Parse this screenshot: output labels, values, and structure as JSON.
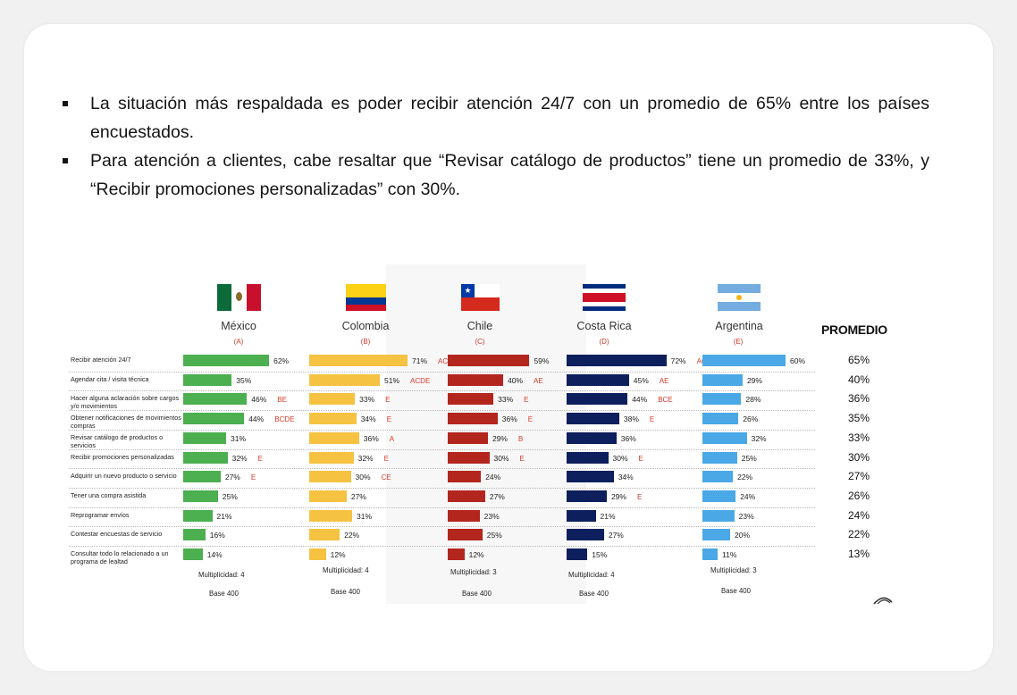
{
  "bullets": [
    "La situación más respaldada es poder recibir atención 24/7 con un promedio de 65% entre los países encuestados.",
    "Para atención a clientes, cabe resaltar que “Revisar catálogo de productos” tiene un promedio de 33%, y “Recibir promociones personalizadas” con 30%."
  ],
  "chart_data": {
    "type": "bar",
    "orientation": "horizontal",
    "promedio_title": "PROMEDIO",
    "categories": [
      "Recibir atención 24/7",
      "Agendar cita / visita técnica",
      "Hacer alguna aclaración sobre cargos y/o movimientos",
      "Obtener notificaciones de movimientos / compras",
      "Revisar catálogo de productos o servicios",
      "Recibir promociones personalizadas",
      "Adquirir un nuevo producto o servicio",
      "Tener una compra asistida",
      "Reprogramar envíos",
      "Contestar encuestas de servicio",
      "Consultar todo lo relacionado a un programa de lealtad"
    ],
    "series": [
      {
        "name": "México",
        "letter": "(A)",
        "color": "#4caf50",
        "values": [
          62,
          35,
          46,
          44,
          31,
          32,
          27,
          25,
          21,
          16,
          14
        ],
        "sig": [
          "",
          "",
          "BE",
          "BCDE",
          "",
          "E",
          "E",
          "",
          "",
          "",
          ""
        ],
        "multiplicity": "Multiplicidad: 4",
        "base": "Base 400"
      },
      {
        "name": "Colombia",
        "letter": "(B)",
        "color": "#f5c242",
        "values": [
          71,
          51,
          33,
          34,
          36,
          32,
          30,
          27,
          31,
          22,
          12
        ],
        "sig": [
          "ACE",
          "ACDE",
          "E",
          "E",
          "A",
          "E",
          "CE",
          "",
          "",
          "",
          ""
        ],
        "multiplicity": "Multiplicidad: 4",
        "base": "Base 400"
      },
      {
        "name": "Chile",
        "letter": "(C)",
        "color": "#b3261e",
        "values": [
          59,
          40,
          33,
          36,
          29,
          30,
          24,
          27,
          23,
          25,
          12
        ],
        "sig": [
          "",
          "AE",
          "E",
          "E",
          "B",
          "E",
          "",
          "",
          "",
          "",
          ""
        ],
        "multiplicity": "Multiplicidad: 3",
        "base": "Base 400"
      },
      {
        "name": "Costa Rica",
        "letter": "(D)",
        "color": "#0d1f5c",
        "values": [
          72,
          45,
          44,
          38,
          36,
          30,
          34,
          29,
          21,
          27,
          15
        ],
        "sig": [
          "ACE",
          "AE",
          "BCE",
          "E",
          "",
          "E",
          "",
          "E",
          "",
          "",
          ""
        ],
        "multiplicity": "Multiplicidad: 4",
        "base": "Base 400"
      },
      {
        "name": "Argentina",
        "letter": "(E)",
        "color": "#4aa8e6",
        "values": [
          60,
          29,
          28,
          26,
          32,
          25,
          22,
          24,
          23,
          20,
          11
        ],
        "sig": [
          "",
          "",
          "",
          "",
          "",
          "",
          "",
          "",
          "",
          "",
          ""
        ],
        "multiplicity": "Multiplicidad: 3",
        "base": "Base 400"
      }
    ],
    "promedio": [
      65,
      40,
      36,
      35,
      33,
      30,
      27,
      26,
      24,
      22,
      13
    ],
    "unit": "%"
  }
}
